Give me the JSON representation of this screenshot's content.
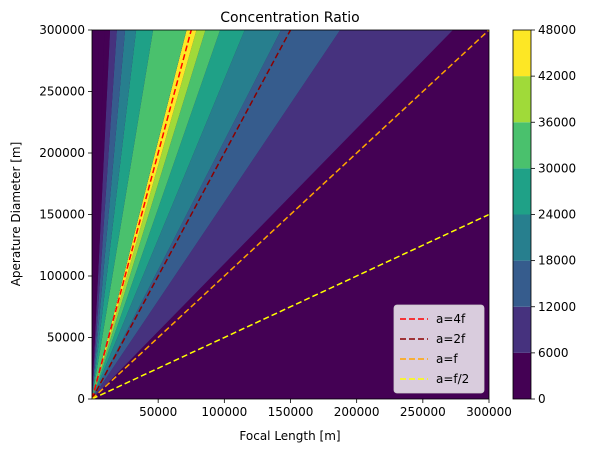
{
  "chart_data": {
    "type": "contourf",
    "title": "Concentration Ratio",
    "xlabel": "Focal Length [m]",
    "ylabel": "Aperature Diameter [m]",
    "xlim": [
      0,
      300000
    ],
    "ylim": [
      0,
      300000
    ],
    "x_ticks": [
      50000,
      100000,
      150000,
      200000,
      250000,
      300000
    ],
    "y_ticks": [
      0,
      50000,
      100000,
      150000,
      200000,
      250000,
      300000
    ],
    "colorbar": {
      "levels": [
        0,
        6000,
        12000,
        18000,
        24000,
        30000,
        36000,
        42000,
        48000
      ],
      "colors": [
        "#440154",
        "#46327e",
        "#365c8d",
        "#277f8e",
        "#1fa187",
        "#4ac16d",
        "#a0da39",
        "#fde725"
      ],
      "ticks": [
        0,
        6000,
        12000,
        18000,
        24000,
        30000,
        36000,
        42000,
        48000
      ]
    },
    "contour_bands": [
      {
        "range": [
          0,
          6000
        ],
        "color": "#440154"
      },
      {
        "range": [
          6000,
          12000
        ],
        "color": "#46327e"
      },
      {
        "range": [
          12000,
          18000
        ],
        "color": "#365c8d"
      },
      {
        "range": [
          18000,
          24000
        ],
        "color": "#277f8e"
      },
      {
        "range": [
          24000,
          30000
        ],
        "color": "#1fa187"
      },
      {
        "range": [
          30000,
          36000
        ],
        "color": "#4ac16d"
      },
      {
        "range": [
          36000,
          42000
        ],
        "color": "#a0da39"
      },
      {
        "range": [
          42000,
          48000
        ],
        "color": "#fde725"
      }
    ],
    "series": [
      {
        "name": "a=4f",
        "slope": 4,
        "color": "#ff0000",
        "style": "dashed"
      },
      {
        "name": "a=2f",
        "slope": 2,
        "color": "#8b0000",
        "style": "dashed"
      },
      {
        "name": "a=f",
        "slope": 1,
        "color": "#ffa500",
        "style": "dashed"
      },
      {
        "name": "a=f/2",
        "slope": 0.5,
        "color": "#ffff00",
        "style": "dashed"
      }
    ],
    "legend_position": "lower-right"
  }
}
